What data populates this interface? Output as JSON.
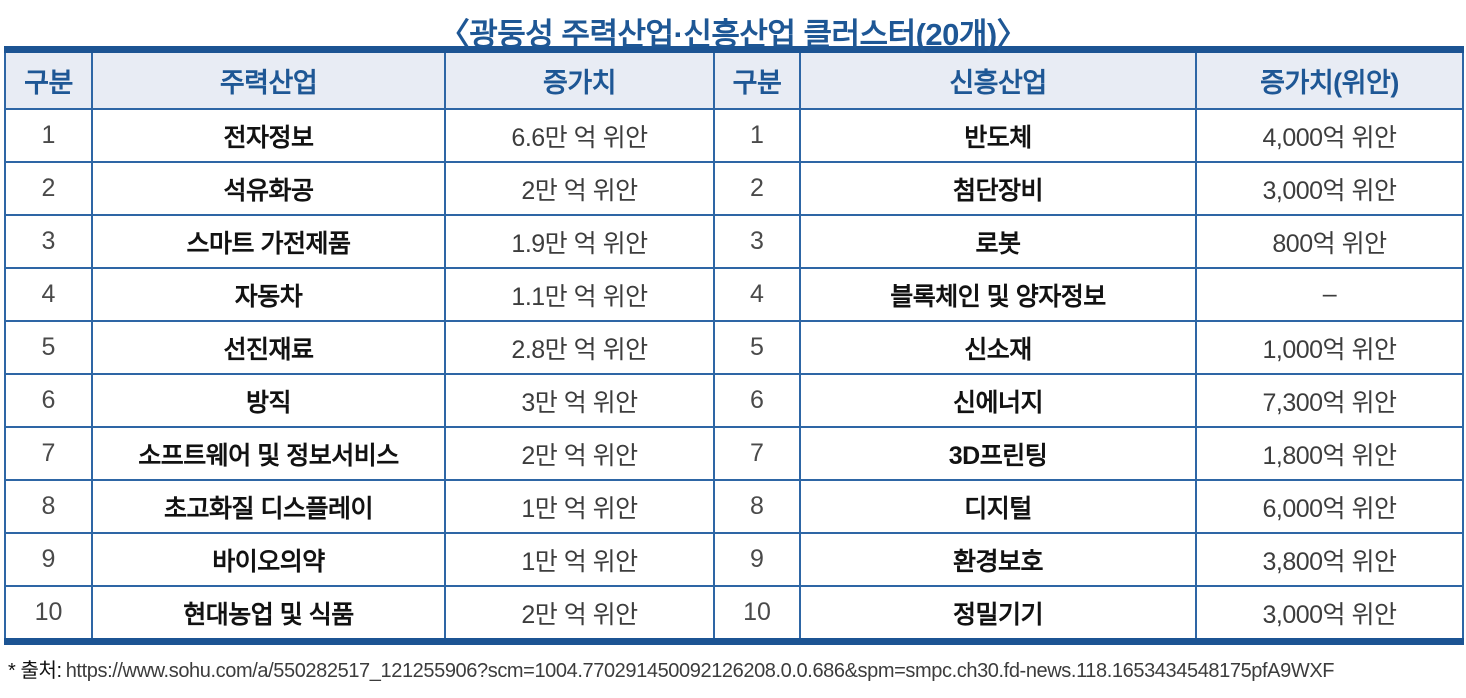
{
  "title": "〈광둥성 주력산업·신흥산업 클러스터(20개)〉",
  "table": {
    "headers": [
      "구분",
      "주력산업",
      "증가치",
      "구분",
      "신흥산업",
      "증가치(위안)"
    ],
    "rows": [
      {
        "no_l": "1",
        "main": "전자정보",
        "main_val": "6.6만 억 위안",
        "no_r": "1",
        "emerg": "반도체",
        "emerg_val": "4,000억 위안"
      },
      {
        "no_l": "2",
        "main": "석유화공",
        "main_val": "2만 억 위안",
        "no_r": "2",
        "emerg": "첨단장비",
        "emerg_val": "3,000억 위안"
      },
      {
        "no_l": "3",
        "main": "스마트 가전제품",
        "main_val": "1.9만 억 위안",
        "no_r": "3",
        "emerg": "로봇",
        "emerg_val": "800억 위안"
      },
      {
        "no_l": "4",
        "main": "자동차",
        "main_val": "1.1만 억 위안",
        "no_r": "4",
        "emerg": "블록체인 및 양자정보",
        "emerg_val": "–"
      },
      {
        "no_l": "5",
        "main": "선진재료",
        "main_val": "2.8만 억 위안",
        "no_r": "5",
        "emerg": "신소재",
        "emerg_val": "1,000억 위안"
      },
      {
        "no_l": "6",
        "main": "방직",
        "main_val": "3만 억 위안",
        "no_r": "6",
        "emerg": "신에너지",
        "emerg_val": "7,300억 위안"
      },
      {
        "no_l": "7",
        "main": "소프트웨어 및 정보서비스",
        "main_val": "2만 억 위안",
        "no_r": "7",
        "emerg": "3D프린팅",
        "emerg_val": "1,800억 위안"
      },
      {
        "no_l": "8",
        "main": "초고화질 디스플레이",
        "main_val": "1만 억 위안",
        "no_r": "8",
        "emerg": "디지털",
        "emerg_val": "6,000억 위안"
      },
      {
        "no_l": "9",
        "main": "바이오의약",
        "main_val": "1만 억 위안",
        "no_r": "9",
        "emerg": "환경보호",
        "emerg_val": "3,800억 위안"
      },
      {
        "no_l": "10",
        "main": "현대농업 및 식품",
        "main_val": "2만 억 위안",
        "no_r": "10",
        "emerg": "정밀기기",
        "emerg_val": "3,000억 위안"
      }
    ]
  },
  "footer": {
    "label": "* 출처:",
    "url": "https://www.sohu.com/a/550282517_121255906?scm=1004.770291450092126208.0.0.686&spm=smpc.ch30.fd-news.118.1653434548175pfA9WXF"
  },
  "colors": {
    "accent_blue": "#1e5795",
    "thick_bar_blue": "#1c5493",
    "grid_blue": "#2e66a5",
    "header_bg": "#e8ecf4",
    "body_text": "#3d3d3d"
  }
}
